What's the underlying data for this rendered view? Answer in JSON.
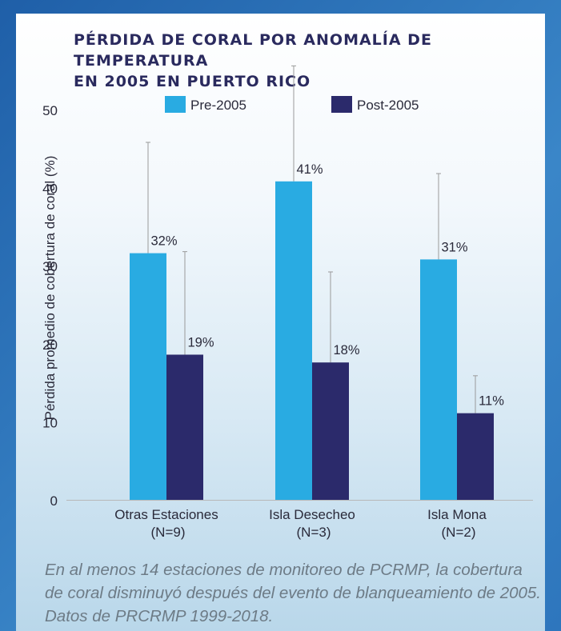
{
  "chart_data": {
    "type": "bar",
    "title": [
      "PÉRDIDA DE CORAL POR ANOMALÍA DE TEMPERATURA",
      "EN 2005 EN PUERTO RICO"
    ],
    "ylabel": "Pérdida promedio de cobertura de coral (%)",
    "xlabel": "",
    "ylim": [
      0,
      50
    ],
    "yticks": [
      "0",
      "10",
      "20",
      "30",
      "40",
      "50"
    ],
    "grid": false,
    "legend_position": "top",
    "categories": [
      {
        "name": "Otras Estaciones",
        "n": "(N=9)"
      },
      {
        "name": "Isla Desecheo",
        "n": "(N=3)"
      },
      {
        "name": "Isla Mona",
        "n": "(N=2)"
      }
    ],
    "series": [
      {
        "name": "Pre-2005",
        "color": "#29abe2",
        "values": [
          31.6,
          40.8,
          30.8
        ],
        "labels": [
          "32%",
          "41%",
          "31%"
        ],
        "error_upper": [
          45.8,
          55.6,
          41.8
        ]
      },
      {
        "name": "Post-2005",
        "color": "#2b2a6b",
        "values": [
          18.6,
          17.6,
          11.1
        ],
        "labels": [
          "19%",
          "18%",
          "11%"
        ],
        "error_upper": [
          31.8,
          29.2,
          15.9
        ]
      }
    ]
  },
  "caption": "En al menos 14 estaciones de monitoreo de PCRMP, la cobertura de coral disminuyó después del evento de blanqueamiento de 2005. Datos de PRCRMP 1999-2018."
}
